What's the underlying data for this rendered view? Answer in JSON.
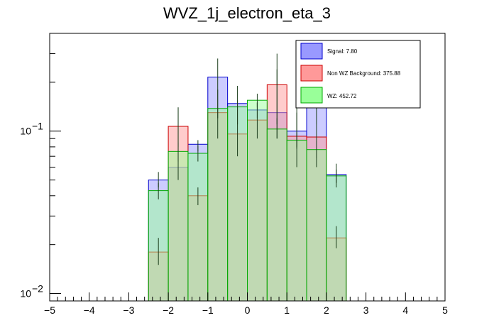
{
  "chart_data": {
    "type": "bar",
    "title": "WVZ_1j_electron_eta_3",
    "xlabel": "",
    "ylabel": "",
    "y_scale": "log",
    "xlim": [
      -5,
      5
    ],
    "ylim": [
      0.009,
      0.4
    ],
    "bin_edges": [
      -2.5,
      -2.0,
      -1.5,
      -1.0,
      -0.5,
      0.0,
      0.5,
      1.0,
      1.5,
      2.0,
      2.5
    ],
    "x_ticks": [
      "-5",
      "-4",
      "-3",
      "-2",
      "-1",
      "0",
      "1",
      "2",
      "3",
      "4",
      "5"
    ],
    "y_ticks": [
      {
        "value": 0.1,
        "base": "10",
        "exp": "-1"
      },
      {
        "value": 0.01,
        "base": "10",
        "exp": "-2"
      }
    ],
    "grid": false,
    "legend_position": "top-right",
    "series": [
      {
        "name": "Signal: 7.80",
        "color": "#9999ff",
        "edge": "#0000cc",
        "values": [
          0.05,
          0.06,
          0.083,
          0.215,
          0.148,
          0.135,
          0.13,
          0.1,
          0.185,
          0.054
        ],
        "errors": [
          [
            0.045,
            0.056
          ],
          [
            0.05,
            0.14
          ],
          [
            0.075,
            0.088
          ],
          [
            0.16,
            0.28
          ],
          [
            0.11,
            0.19
          ],
          [
            0.12,
            0.15
          ],
          [
            0.09,
            0.24
          ],
          [
            0.08,
            0.13
          ],
          [
            0.11,
            0.3
          ],
          [
            0.045,
            0.063
          ]
        ]
      },
      {
        "name": "Non WZ Background: 375.88",
        "color": "#ff9999",
        "edge": "#cc0000",
        "values": [
          0.018,
          0.107,
          0.04,
          0.13,
          0.096,
          0.117,
          0.193,
          0.093,
          0.092,
          0.022
        ],
        "errors": [
          [
            0.015,
            0.022
          ],
          [
            0.08,
            0.14
          ],
          [
            0.035,
            0.045
          ],
          [
            0.09,
            0.18
          ],
          [
            0.07,
            0.13
          ],
          [
            0.09,
            0.15
          ],
          [
            0.11,
            0.3
          ],
          [
            0.06,
            0.14
          ],
          [
            0.06,
            0.14
          ],
          [
            0.019,
            0.026
          ]
        ]
      },
      {
        "name": "WZ: 452.72",
        "color": "#99ff99",
        "edge": "#00aa00",
        "values": [
          0.043,
          0.075,
          0.073,
          0.138,
          0.141,
          0.155,
          0.103,
          0.088,
          0.077,
          0.053
        ],
        "errors": [
          [
            0.038,
            0.048
          ],
          [
            0.065,
            0.085
          ],
          [
            0.065,
            0.081
          ],
          [
            0.12,
            0.16
          ],
          [
            0.13,
            0.155
          ],
          [
            0.14,
            0.17
          ],
          [
            0.09,
            0.12
          ],
          [
            0.078,
            0.098
          ],
          [
            0.068,
            0.087
          ],
          [
            0.048,
            0.058
          ]
        ]
      }
    ]
  }
}
